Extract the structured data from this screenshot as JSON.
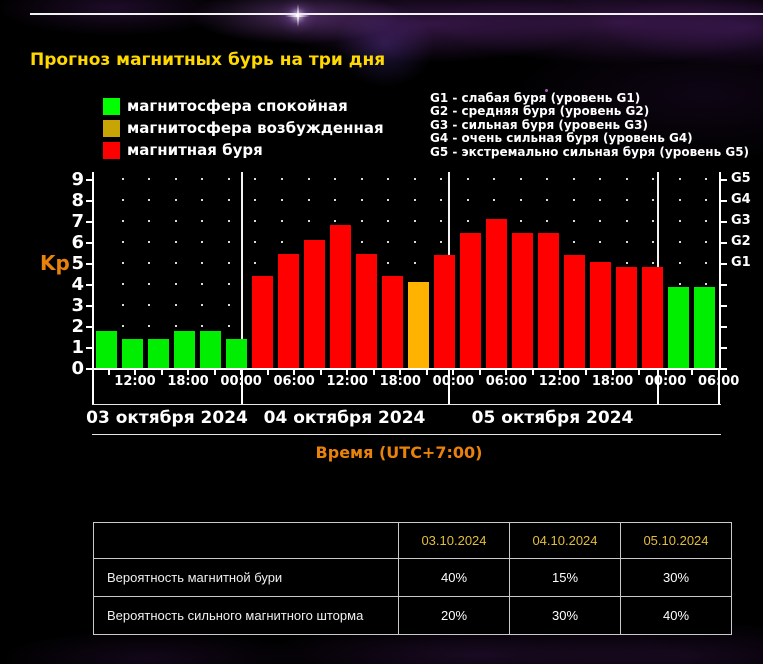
{
  "title": "Прогноз магнитных бурь на три дня",
  "legend": [
    {
      "label": "магнитосфера спокойная",
      "level": "quiet"
    },
    {
      "label": "магнитосфера возбужденная",
      "level": "active"
    },
    {
      "label": "магнитная буря",
      "level": "storm"
    }
  ],
  "storm_scale": [
    "G1 - слабая буря (уровень G1)",
    "G2 - средняя буря (уровень G2)",
    "G3 - сильная буря (уровень G3)",
    "G4 - очень сильная буря (уровень G4)",
    "G5 - экстремально сильная буря (уровень G5)"
  ],
  "chart_data": {
    "type": "bar",
    "y_axis_label": "Kp",
    "xlabel": "Время (UTC+7:00)",
    "ylim": [
      0,
      9.4
    ],
    "grid": "dotted",
    "yticks_left": [
      0,
      1,
      2,
      3,
      4,
      5,
      6,
      7,
      8,
      9
    ],
    "yticks_right": [
      {
        "label": "G1",
        "value": 5
      },
      {
        "label": "G2",
        "value": 6
      },
      {
        "label": "G3",
        "value": 7
      },
      {
        "label": "G4",
        "value": 8
      },
      {
        "label": "G5",
        "value": 9
      }
    ],
    "x_tick_labels": [
      "12:00",
      "18:00",
      "00:00",
      "06:00",
      "12:00",
      "18:00",
      "00:00",
      "06:00",
      "12:00",
      "18:00",
      "00:00",
      "06:00"
    ],
    "days": [
      {
        "date": "03 октября 2024",
        "bars": [
          {
            "kp": 1.75,
            "level": "quiet"
          },
          {
            "kp": 1.4,
            "level": "quiet"
          },
          {
            "kp": 1.4,
            "level": "quiet"
          },
          {
            "kp": 1.75,
            "level": "quiet"
          },
          {
            "kp": 1.75,
            "level": "quiet"
          },
          {
            "kp": 1.4,
            "level": "quiet"
          }
        ]
      },
      {
        "date": "04 октября 2024",
        "bars": [
          {
            "kp": 4.4,
            "level": "storm"
          },
          {
            "kp": 5.45,
            "level": "storm"
          },
          {
            "kp": 6.1,
            "level": "storm"
          },
          {
            "kp": 6.8,
            "level": "storm"
          },
          {
            "kp": 5.45,
            "level": "storm"
          },
          {
            "kp": 4.4,
            "level": "storm"
          },
          {
            "kp": 4.1,
            "level": "active"
          },
          {
            "kp": 5.4,
            "level": "storm"
          }
        ]
      },
      {
        "date": "05 октября 2024",
        "bars": [
          {
            "kp": 6.45,
            "level": "storm"
          },
          {
            "kp": 7.1,
            "level": "storm"
          },
          {
            "kp": 6.45,
            "level": "storm"
          },
          {
            "kp": 6.45,
            "level": "storm"
          },
          {
            "kp": 5.4,
            "level": "storm"
          },
          {
            "kp": 5.05,
            "level": "storm"
          },
          {
            "kp": 4.8,
            "level": "storm"
          },
          {
            "kp": 4.8,
            "level": "storm"
          }
        ]
      },
      {
        "date": "",
        "bars": [
          {
            "kp": 3.85,
            "level": "quiet"
          },
          {
            "kp": 3.85,
            "level": "quiet"
          }
        ]
      }
    ]
  },
  "colors": {
    "bar_quiet": "#00ee00",
    "bar_active": "#ffb300",
    "bar_storm": "#ff0000",
    "legend_quiet": "#00ff00",
    "legend_active": "#c9a405",
    "legend_storm": "#ff0000",
    "title_yellow": "#ffd800",
    "axis_orange": "#e8820a",
    "table_date_gold": "#e3bd3a"
  },
  "table": {
    "date_headers": [
      "03.10.2024",
      "04.10.2024",
      "05.10.2024"
    ],
    "rows": [
      {
        "label": "Вероятность магнитной бури",
        "values": [
          "40%",
          "15%",
          "30%"
        ]
      },
      {
        "label": "Вероятность сильного магнитного шторма",
        "values": [
          "20%",
          "30%",
          "40%"
        ]
      }
    ]
  }
}
